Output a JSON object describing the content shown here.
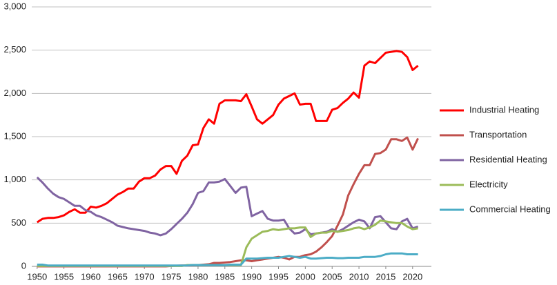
{
  "chart_data": {
    "type": "line",
    "x": [
      1950,
      1951,
      1952,
      1953,
      1954,
      1955,
      1956,
      1957,
      1958,
      1959,
      1960,
      1961,
      1962,
      1963,
      1964,
      1965,
      1966,
      1967,
      1968,
      1969,
      1970,
      1971,
      1972,
      1973,
      1974,
      1975,
      1976,
      1977,
      1978,
      1979,
      1980,
      1981,
      1982,
      1983,
      1984,
      1985,
      1986,
      1987,
      1988,
      1989,
      1990,
      1991,
      1992,
      1993,
      1994,
      1995,
      1996,
      1997,
      1998,
      1999,
      2000,
      2001,
      2002,
      2003,
      2004,
      2005,
      2006,
      2007,
      2008,
      2009,
      2010,
      2011,
      2012,
      2013,
      2014,
      2015,
      2016,
      2017,
      2018,
      2019,
      2020,
      2021
    ],
    "xlim": [
      1949,
      2023.5
    ],
    "xticks": [
      1950,
      1955,
      1960,
      1965,
      1970,
      1975,
      1980,
      1985,
      1990,
      1995,
      2000,
      2005,
      2010,
      2015,
      2020
    ],
    "ylim": [
      0,
      3000
    ],
    "yticks": [
      0,
      {
        "value": 500,
        "label": "500"
      },
      {
        "value": 1000,
        "label": "1,000"
      },
      {
        "value": 1500,
        "label": "1,500"
      },
      {
        "value": 2000,
        "label": "2,000"
      },
      {
        "value": 2500,
        "label": "2,500"
      },
      {
        "value": 3000,
        "label": "3,000"
      }
    ],
    "grid": true,
    "legend": "right",
    "series": [
      {
        "name": "Industrial Heating",
        "color": "#ff0000",
        "values": [
          510,
          550,
          560,
          560,
          570,
          590,
          630,
          660,
          620,
          620,
          690,
          680,
          700,
          730,
          780,
          830,
          860,
          900,
          900,
          980,
          1020,
          1020,
          1050,
          1120,
          1160,
          1160,
          1070,
          1220,
          1280,
          1400,
          1410,
          1600,
          1700,
          1650,
          1880,
          1920,
          1920,
          1920,
          1910,
          1990,
          1850,
          1700,
          1650,
          1700,
          1750,
          1870,
          1940,
          1970,
          2000,
          1870,
          1880,
          1880,
          1680,
          1680,
          1680,
          1810,
          1830,
          1890,
          1940,
          2010,
          1950,
          2320,
          2370,
          2350,
          2410,
          2470,
          2480,
          2490,
          2480,
          2420,
          2270,
          2320
        ]
      },
      {
        "name": "Transportation",
        "color": "#c0504d",
        "values": [
          0,
          0,
          0,
          0,
          0,
          0,
          0,
          0,
          0,
          0,
          0,
          0,
          0,
          0,
          0,
          0,
          0,
          0,
          0,
          0,
          0,
          0,
          0,
          0,
          0,
          5,
          8,
          10,
          10,
          12,
          15,
          20,
          25,
          40,
          40,
          45,
          50,
          60,
          70,
          70,
          60,
          70,
          80,
          90,
          100,
          110,
          100,
          80,
          110,
          110,
          130,
          140,
          170,
          220,
          280,
          350,
          470,
          600,
          820,
          950,
          1070,
          1170,
          1170,
          1300,
          1310,
          1350,
          1470,
          1470,
          1450,
          1490,
          1350,
          1480
        ]
      },
      {
        "name": "Residential Heating",
        "color": "#8064a2",
        "values": [
          1030,
          970,
          900,
          840,
          800,
          780,
          740,
          700,
          700,
          650,
          630,
          590,
          570,
          540,
          510,
          470,
          455,
          440,
          430,
          420,
          410,
          390,
          380,
          360,
          380,
          430,
          490,
          550,
          620,
          720,
          850,
          870,
          970,
          970,
          980,
          1010,
          930,
          850,
          910,
          920,
          580,
          610,
          640,
          550,
          530,
          530,
          540,
          440,
          380,
          390,
          430,
          370,
          380,
          390,
          400,
          430,
          400,
          430,
          470,
          510,
          540,
          520,
          440,
          570,
          580,
          510,
          440,
          430,
          520,
          550,
          440,
          460
        ]
      },
      {
        "name": "Electricity",
        "color": "#9bbb59",
        "values": [
          5,
          5,
          5,
          5,
          5,
          5,
          5,
          5,
          5,
          5,
          5,
          5,
          5,
          5,
          5,
          5,
          5,
          5,
          5,
          5,
          5,
          5,
          5,
          5,
          5,
          5,
          5,
          5,
          15,
          15,
          15,
          15,
          15,
          15,
          15,
          15,
          15,
          15,
          15,
          220,
          320,
          360,
          400,
          410,
          430,
          420,
          430,
          440,
          440,
          450,
          450,
          340,
          380,
          390,
          390,
          410,
          400,
          410,
          420,
          440,
          450,
          430,
          450,
          480,
          530,
          520,
          510,
          500,
          500,
          460,
          430,
          440
        ]
      },
      {
        "name": "Commercial Heating",
        "color": "#4bacc6",
        "values": [
          20,
          20,
          10,
          10,
          10,
          10,
          10,
          10,
          10,
          10,
          10,
          10,
          10,
          10,
          10,
          10,
          10,
          10,
          10,
          10,
          10,
          10,
          10,
          10,
          10,
          10,
          10,
          10,
          10,
          15,
          15,
          15,
          15,
          15,
          15,
          15,
          20,
          20,
          20,
          90,
          90,
          90,
          95,
          100,
          100,
          100,
          110,
          120,
          110,
          100,
          110,
          90,
          90,
          95,
          100,
          100,
          95,
          95,
          100,
          100,
          100,
          110,
          110,
          110,
          120,
          140,
          150,
          150,
          150,
          140,
          140,
          140
        ]
      }
    ]
  }
}
